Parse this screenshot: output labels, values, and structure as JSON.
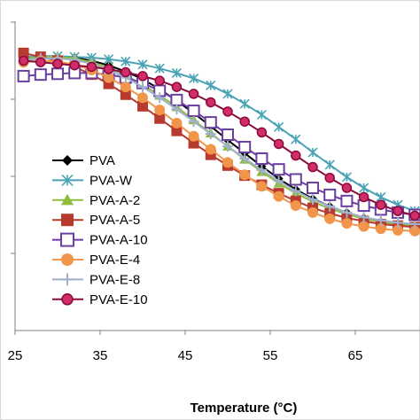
{
  "chart_data": {
    "type": "line",
    "xlabel": "Temperature (°C)",
    "ylabel": "",
    "xlim": [
      25,
      75
    ],
    "ylim": [
      0,
      4.5
    ],
    "x_ticks": [
      25,
      35,
      45,
      55,
      65
    ],
    "x_tick_labels": [
      "25",
      "35",
      "45",
      "55",
      "65"
    ],
    "y_ticks": [
      1,
      2,
      3,
      4
    ],
    "grid": false,
    "legend_position": "left",
    "series": [
      {
        "name": "PVA",
        "color": "#000000",
        "marker": "diamond",
        "x": [
          26,
          28,
          30,
          32,
          34,
          36,
          38,
          40,
          42,
          44,
          46,
          48,
          50,
          52,
          54,
          56,
          58,
          60,
          62,
          64,
          66,
          68,
          70,
          72,
          74
        ],
        "y": [
          3.5,
          3.55,
          3.55,
          3.54,
          3.5,
          3.44,
          3.36,
          3.26,
          3.13,
          2.98,
          2.82,
          2.65,
          2.47,
          2.3,
          2.13,
          1.97,
          1.83,
          1.71,
          1.61,
          1.53,
          1.46,
          1.41,
          1.38,
          1.36,
          1.35
        ]
      },
      {
        "name": "PVA-W",
        "color": "#4aa3b5",
        "marker": "x",
        "x": [
          26,
          28,
          30,
          32,
          34,
          36,
          38,
          40,
          42,
          44,
          46,
          48,
          50,
          52,
          54,
          56,
          58,
          60,
          62,
          64,
          66,
          68,
          70,
          72,
          74
        ],
        "y": [
          3.55,
          3.56,
          3.56,
          3.55,
          3.54,
          3.52,
          3.49,
          3.45,
          3.4,
          3.34,
          3.27,
          3.18,
          3.07,
          2.94,
          2.8,
          2.64,
          2.48,
          2.31,
          2.15,
          1.99,
          1.85,
          1.73,
          1.63,
          1.55,
          1.49
        ]
      },
      {
        "name": "PVA-A-2",
        "color": "#8fbb3e",
        "marker": "triangle",
        "x": [
          26,
          28,
          30,
          32,
          34,
          36,
          38,
          40,
          42,
          44,
          46,
          48,
          50,
          52,
          54,
          56,
          58,
          60,
          62,
          64,
          66,
          68,
          70,
          72,
          74
        ],
        "y": [
          3.52,
          3.55,
          3.55,
          3.53,
          3.48,
          3.41,
          3.31,
          3.19,
          3.05,
          2.9,
          2.73,
          2.56,
          2.39,
          2.22,
          2.06,
          1.91,
          1.78,
          1.67,
          1.58,
          1.51,
          1.45,
          1.41,
          1.38,
          1.36,
          1.35
        ]
      },
      {
        "name": "PVA-A-5",
        "color": "#b83a2e",
        "marker": "square",
        "x": [
          26,
          28,
          30,
          32,
          34,
          36,
          38,
          40,
          42,
          44,
          46,
          48,
          50,
          52,
          54,
          56,
          58,
          60,
          62,
          64,
          66,
          68,
          70,
          72,
          74
        ],
        "y": [
          3.6,
          3.55,
          3.5,
          3.42,
          3.32,
          3.2,
          3.06,
          2.91,
          2.75,
          2.59,
          2.43,
          2.28,
          2.14,
          2.01,
          1.89,
          1.78,
          1.68,
          1.59,
          1.52,
          1.46,
          1.42,
          1.38,
          1.36,
          1.34,
          1.33
        ]
      },
      {
        "name": "PVA-A-10",
        "color": "#6b3fa0",
        "marker": "square-open",
        "x": [
          26,
          28,
          30,
          32,
          34,
          36,
          38,
          40,
          42,
          44,
          46,
          48,
          50,
          52,
          54,
          56,
          58,
          60,
          62,
          64,
          66,
          68,
          70,
          72,
          74
        ],
        "y": [
          3.3,
          3.32,
          3.33,
          3.34,
          3.34,
          3.32,
          3.28,
          3.21,
          3.11,
          2.99,
          2.85,
          2.7,
          2.54,
          2.38,
          2.23,
          2.09,
          1.96,
          1.85,
          1.76,
          1.68,
          1.62,
          1.57,
          1.53,
          1.5,
          1.48
        ]
      },
      {
        "name": "PVA-E-4",
        "color": "#f0954a",
        "marker": "circle",
        "x": [
          26,
          28,
          30,
          32,
          34,
          36,
          38,
          40,
          42,
          44,
          46,
          48,
          50,
          52,
          54,
          56,
          58,
          60,
          62,
          64,
          66,
          68,
          70,
          72,
          74
        ],
        "y": [
          3.48,
          3.5,
          3.49,
          3.45,
          3.38,
          3.28,
          3.16,
          3.02,
          2.86,
          2.69,
          2.52,
          2.35,
          2.18,
          2.02,
          1.87,
          1.74,
          1.62,
          1.53,
          1.45,
          1.39,
          1.35,
          1.32,
          1.3,
          1.29,
          1.28
        ]
      },
      {
        "name": "PVA-E-8",
        "color": "#9fb1cc",
        "marker": "plus",
        "x": [
          26,
          28,
          30,
          32,
          34,
          36,
          38,
          40,
          42,
          44,
          46,
          48,
          50,
          52,
          54,
          56,
          58,
          60,
          62,
          64,
          66,
          68,
          70,
          72,
          74
        ],
        "y": [
          3.5,
          3.53,
          3.53,
          3.51,
          3.46,
          3.38,
          3.28,
          3.16,
          3.02,
          2.87,
          2.71,
          2.55,
          2.39,
          2.23,
          2.08,
          1.94,
          1.81,
          1.7,
          1.61,
          1.53,
          1.47,
          1.43,
          1.4,
          1.38,
          1.37
        ]
      },
      {
        "name": "PVA-E-10",
        "color": "#8b0a3a",
        "marker": "circle-dot",
        "x": [
          26,
          28,
          30,
          32,
          34,
          36,
          38,
          40,
          42,
          44,
          46,
          48,
          50,
          52,
          54,
          56,
          58,
          60,
          62,
          64,
          66,
          68,
          70,
          72,
          74
        ],
        "y": [
          3.5,
          3.48,
          3.46,
          3.44,
          3.42,
          3.39,
          3.35,
          3.3,
          3.24,
          3.16,
          3.07,
          2.96,
          2.84,
          2.71,
          2.57,
          2.42,
          2.27,
          2.12,
          1.98,
          1.85,
          1.73,
          1.63,
          1.55,
          1.49,
          1.45
        ]
      }
    ]
  }
}
